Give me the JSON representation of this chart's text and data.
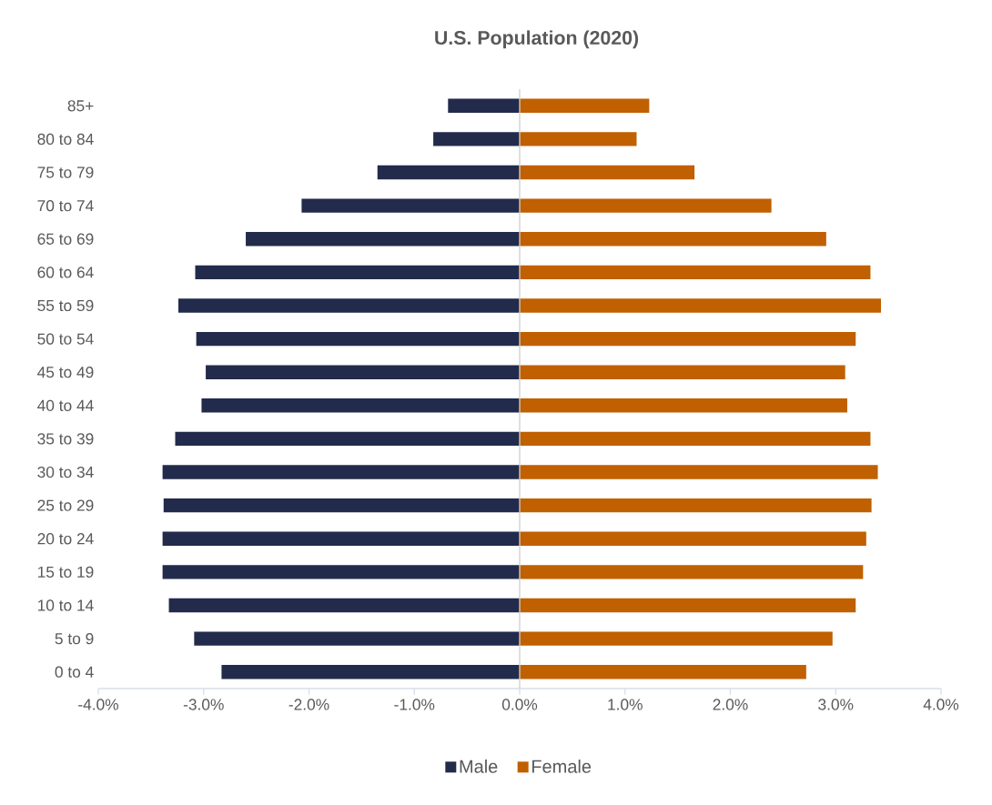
{
  "chart_data": {
    "type": "bar",
    "orientation": "horizontal",
    "title": "U.S. Population (2020)",
    "categories": [
      "85+",
      "80 to 84",
      "75 to 79",
      "70 to 74",
      "65 to 69",
      "60 to 64",
      "55 to 59",
      "50 to 54",
      "45 to 49",
      "40 to 44",
      "35 to 39",
      "30 to 34",
      "25 to 29",
      "20 to 24",
      "15 to 19",
      "10 to 14",
      "5 to 9",
      "0 to 4"
    ],
    "series": [
      {
        "name": "Male",
        "color": "#222b4b",
        "values": [
          -0.68,
          -0.82,
          -1.35,
          -2.07,
          -2.6,
          -3.08,
          -3.24,
          -3.07,
          -2.98,
          -3.02,
          -3.27,
          -3.39,
          -3.38,
          -3.39,
          -3.39,
          -3.33,
          -3.09,
          -2.83
        ]
      },
      {
        "name": "Female",
        "color": "#c06000",
        "values": [
          1.23,
          1.11,
          1.66,
          2.39,
          2.91,
          3.33,
          3.43,
          3.19,
          3.09,
          3.11,
          3.33,
          3.4,
          3.34,
          3.29,
          3.26,
          3.19,
          2.97,
          2.72
        ]
      }
    ],
    "xlim": [
      -4,
      4
    ],
    "xticks": [
      {
        "value": -4,
        "label": "-4.0%"
      },
      {
        "value": -3,
        "label": "-3.0%"
      },
      {
        "value": -2,
        "label": "-2.0%"
      },
      {
        "value": -1,
        "label": "-1.0%"
      },
      {
        "value": 0,
        "label": "0.0%"
      },
      {
        "value": 1,
        "label": "1.0%"
      },
      {
        "value": 2,
        "label": "2.0%"
      },
      {
        "value": 3,
        "label": "3.0%"
      },
      {
        "value": 4,
        "label": "4.0%"
      }
    ],
    "stacked": true,
    "legend": "bottom"
  }
}
